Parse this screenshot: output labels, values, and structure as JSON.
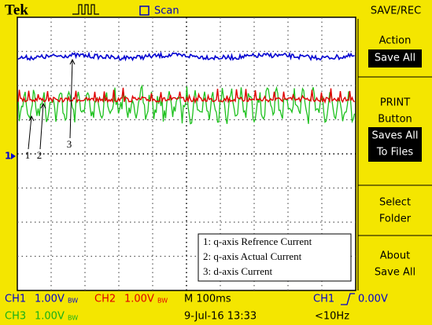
{
  "header": {
    "brand": "Tek",
    "mode": "Scan",
    "menu_title": "SAVE/REC"
  },
  "menu": [
    {
      "label": [
        "Action"
      ],
      "value": [
        "Save All"
      ]
    },
    {
      "label": [
        "PRINT",
        "Button"
      ],
      "value": [
        "Saves All",
        "To Files"
      ]
    },
    {
      "label": [
        "Select",
        "Folder"
      ]
    },
    {
      "label": [
        "About",
        "Save All"
      ]
    }
  ],
  "waveform_labels": [
    "1",
    "2",
    "3"
  ],
  "ground_marker": "1",
  "legend": [
    "1: q-axis Refrence Current",
    "2: q-axis Actual Current",
    "3: d-axis Current"
  ],
  "status": {
    "ch1": "CH1",
    "ch2": "CH2",
    "ch3": "CH3",
    "scale": "1.00V",
    "bw": "BW",
    "timebase": "M 100ms",
    "trigger_source": "CH1",
    "trigger_level": "0.00V",
    "date": "9-Jul-16 13:33",
    "frequency": "<10Hz"
  }
}
